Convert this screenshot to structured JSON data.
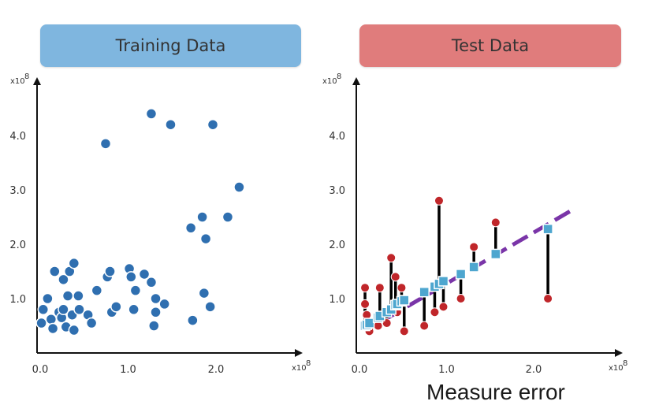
{
  "panels": {
    "train": {
      "title": "Training Data",
      "color": "#7fb6df"
    },
    "test": {
      "title": "Test Data",
      "color": "#e07c7c"
    }
  },
  "footer_label": "Measure error",
  "colors": {
    "train_point": "#2f6fb0",
    "test_point": "#c0262a",
    "predicted_marker": "#4ea6cf",
    "fit_line": "#7a35a8",
    "residual": "#000000"
  },
  "chart_data": [
    {
      "type": "scatter",
      "title": "Training Data",
      "xlabel": "",
      "ylabel": "",
      "x_multiplier": "x10^8",
      "y_multiplier": "x10^8",
      "xlim": [
        0.0,
        2.5
      ],
      "ylim": [
        0.0,
        5.0
      ],
      "xticks": [
        "0.0",
        "1.0",
        "2.0"
      ],
      "yticks": [
        "1.0",
        "2.0",
        "3.0",
        "4.0"
      ],
      "grid": false,
      "points": [
        [
          0.05,
          0.55
        ],
        [
          0.07,
          0.8
        ],
        [
          0.12,
          1.0
        ],
        [
          0.16,
          0.62
        ],
        [
          0.18,
          0.45
        ],
        [
          0.2,
          1.5
        ],
        [
          0.25,
          0.75
        ],
        [
          0.28,
          0.65
        ],
        [
          0.3,
          0.8
        ],
        [
          0.3,
          1.35
        ],
        [
          0.33,
          0.48
        ],
        [
          0.35,
          1.05
        ],
        [
          0.37,
          1.5
        ],
        [
          0.4,
          0.7
        ],
        [
          0.42,
          0.42
        ],
        [
          0.42,
          1.65
        ],
        [
          0.47,
          1.05
        ],
        [
          0.48,
          0.8
        ],
        [
          0.58,
          0.7
        ],
        [
          0.62,
          0.55
        ],
        [
          0.68,
          1.15
        ],
        [
          0.78,
          3.85
        ],
        [
          0.8,
          1.4
        ],
        [
          0.83,
          1.5
        ],
        [
          0.85,
          0.75
        ],
        [
          0.9,
          0.85
        ],
        [
          1.05,
          1.55
        ],
        [
          1.07,
          1.4
        ],
        [
          1.1,
          0.8
        ],
        [
          1.12,
          1.15
        ],
        [
          1.22,
          1.45
        ],
        [
          1.3,
          1.3
        ],
        [
          1.3,
          4.4
        ],
        [
          1.33,
          0.5
        ],
        [
          1.35,
          1.0
        ],
        [
          1.35,
          0.75
        ],
        [
          1.45,
          0.9
        ],
        [
          1.52,
          4.2
        ],
        [
          1.75,
          2.3
        ],
        [
          1.77,
          0.6
        ],
        [
          1.88,
          2.5
        ],
        [
          1.9,
          1.1
        ],
        [
          1.92,
          2.1
        ],
        [
          1.97,
          0.85
        ],
        [
          2.0,
          4.2
        ],
        [
          2.17,
          2.5
        ],
        [
          2.3,
          3.05
        ]
      ]
    },
    {
      "type": "scatter",
      "title": "Test Data",
      "xlabel": "",
      "ylabel": "",
      "x_multiplier": "x10^8",
      "y_multiplier": "x10^8",
      "xlim": [
        0.0,
        2.7
      ],
      "ylim": [
        0.0,
        5.0
      ],
      "xticks": [
        "0.0",
        "1.0",
        "2.0"
      ],
      "yticks": [
        "1.0",
        "2.0",
        "3.0",
        "4.0"
      ],
      "grid": false,
      "fit_line": {
        "x": [
          0.1,
          2.5
        ],
        "y": [
          0.4,
          2.65
        ],
        "style": "dashed"
      },
      "points": [
        {
          "x": 0.1,
          "actual": 1.2,
          "predicted": 0.5
        },
        {
          "x": 0.1,
          "actual": 0.9,
          "predicted": 0.5
        },
        {
          "x": 0.12,
          "actual": 0.7,
          "predicted": 0.52
        },
        {
          "x": 0.15,
          "actual": 0.4,
          "predicted": 0.55
        },
        {
          "x": 0.25,
          "actual": 0.5,
          "predicted": 0.65
        },
        {
          "x": 0.27,
          "actual": 1.2,
          "predicted": 0.68
        },
        {
          "x": 0.35,
          "actual": 0.55,
          "predicted": 0.75
        },
        {
          "x": 0.4,
          "actual": 1.75,
          "predicted": 0.8
        },
        {
          "x": 0.45,
          "actual": 1.4,
          "predicted": 0.88
        },
        {
          "x": 0.47,
          "actual": 0.75,
          "predicted": 0.9
        },
        {
          "x": 0.52,
          "actual": 1.2,
          "predicted": 0.95
        },
        {
          "x": 0.55,
          "actual": 0.4,
          "predicted": 0.97
        },
        {
          "x": 0.78,
          "actual": 0.5,
          "predicted": 1.12
        },
        {
          "x": 0.9,
          "actual": 0.75,
          "predicted": 1.22
        },
        {
          "x": 0.95,
          "actual": 2.8,
          "predicted": 1.27
        },
        {
          "x": 1.0,
          "actual": 0.85,
          "predicted": 1.32
        },
        {
          "x": 1.2,
          "actual": 1.0,
          "predicted": 1.45
        },
        {
          "x": 1.35,
          "actual": 1.95,
          "predicted": 1.58
        },
        {
          "x": 1.6,
          "actual": 2.4,
          "predicted": 1.82
        },
        {
          "x": 2.2,
          "actual": 1.0,
          "predicted": 2.28
        }
      ]
    }
  ]
}
